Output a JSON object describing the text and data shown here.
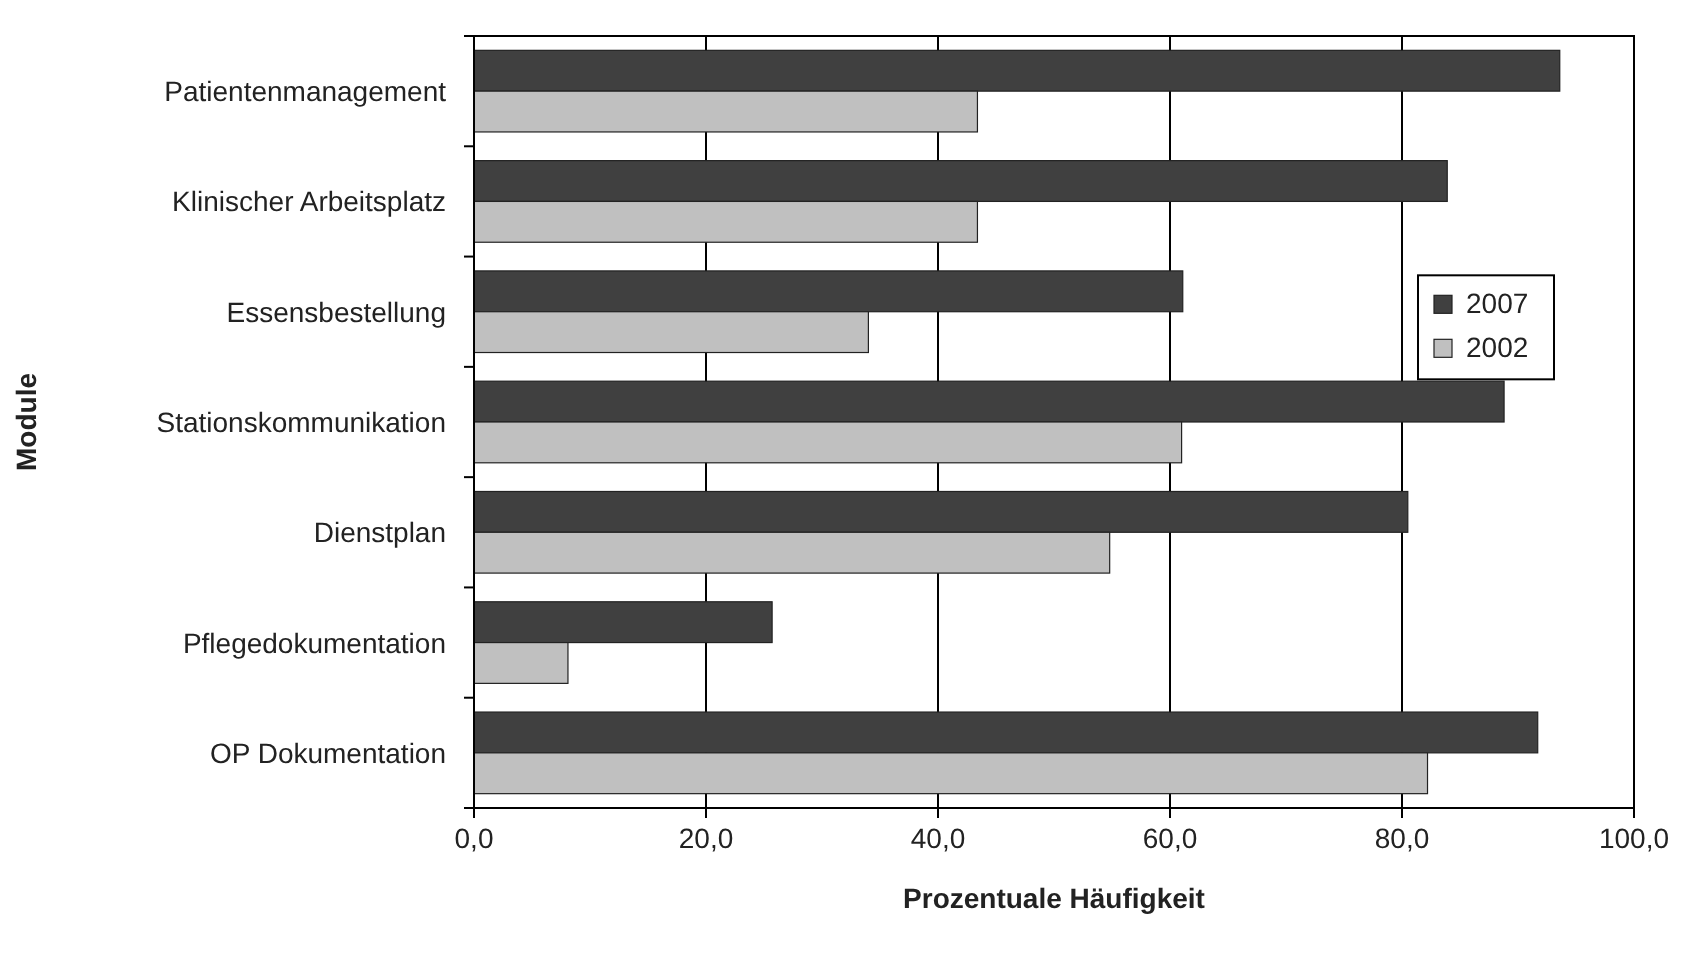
{
  "chart_data": {
    "type": "bar",
    "orientation": "horizontal",
    "xlabel": "Prozentuale Häufigkeit",
    "ylabel": "Module",
    "categories": [
      "Patientenmanagement",
      "Klinischer Arbeitsplatz",
      "Essensbestellung",
      "Stationskommunikation",
      "Dienstplan",
      "Pflegedokumentation",
      "OP Dokumentation"
    ],
    "series": [
      {
        "name": "2007",
        "color": "#404040",
        "values": [
          93.6,
          83.9,
          61.1,
          88.8,
          80.5,
          25.7,
          91.7
        ]
      },
      {
        "name": "2002",
        "color": "#c0c0c0",
        "values": [
          43.4,
          43.4,
          34.0,
          61.0,
          54.8,
          8.1,
          82.2
        ]
      }
    ],
    "xlim": [
      0,
      100
    ],
    "xticks": [
      {
        "value": 0,
        "label": "0,0"
      },
      {
        "value": 20,
        "label": "20,0"
      },
      {
        "value": 40,
        "label": "40,0"
      },
      {
        "value": 60,
        "label": "60,0"
      },
      {
        "value": 80,
        "label": "80,0"
      },
      {
        "value": 100,
        "label": "100,0"
      }
    ],
    "grid": "x",
    "legend": "right"
  }
}
